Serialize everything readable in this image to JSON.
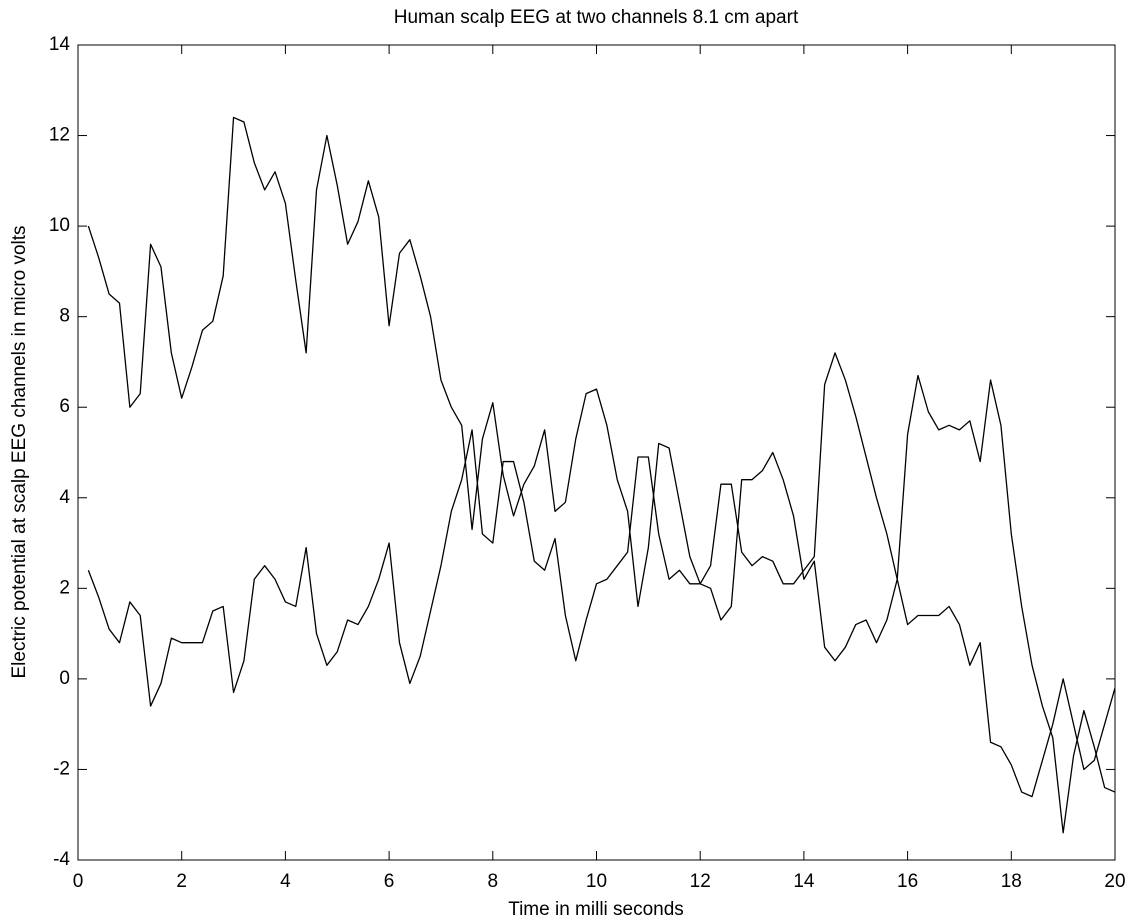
{
  "chart_data": {
    "type": "line",
    "title": "Human scalp EEG at two channels 8.1 cm apart",
    "xlabel": "Time in milli seconds",
    "ylabel": "Electric potential at scalp EEG channels in micro volts",
    "x": [
      0.2,
      0.4,
      0.6,
      0.8,
      1.0,
      1.2,
      1.4,
      1.6,
      1.8,
      2.0,
      2.2,
      2.4,
      2.6,
      2.8,
      3.0,
      3.2,
      3.4,
      3.6,
      3.8,
      4.0,
      4.2,
      4.4,
      4.6,
      4.8,
      5.0,
      5.2,
      5.4,
      5.6,
      5.8,
      6.0,
      6.2,
      6.4,
      6.6,
      6.8,
      7.0,
      7.2,
      7.4,
      7.6,
      7.8,
      8.0,
      8.2,
      8.4,
      8.6,
      8.8,
      9.0,
      9.2,
      9.4,
      9.6,
      9.8,
      10.0,
      10.2,
      10.4,
      10.6,
      10.8,
      11.0,
      11.2,
      11.4,
      11.6,
      11.8,
      12.0,
      12.2,
      12.4,
      12.6,
      12.8,
      13.0,
      13.2,
      13.4,
      13.6,
      13.8,
      14.0,
      14.2,
      14.4,
      14.6,
      14.8,
      15.0,
      15.2,
      15.4,
      15.6,
      15.8,
      16.0,
      16.2,
      16.4,
      16.6,
      16.8,
      17.0,
      17.2,
      17.4,
      17.6,
      17.8,
      18.0,
      18.2,
      18.4,
      18.6,
      18.8,
      19.0,
      19.2,
      19.4,
      19.6,
      19.8,
      20.0
    ],
    "series": [
      {
        "color": "#000000",
        "values": [
          10,
          9.3,
          8.5,
          8.3,
          6.0,
          6.3,
          9.6,
          9.1,
          7.2,
          6.2,
          6.9,
          7.7,
          7.9,
          8.9,
          12.4,
          12.3,
          11.4,
          10.8,
          11.2,
          10.5,
          8.8,
          7.2,
          10.8,
          12.0,
          10.9,
          9.6,
          10.1,
          11.0,
          10.2,
          7.8,
          9.4,
          9.7,
          8.9,
          8.0,
          6.6,
          6.0,
          5.6,
          3.3,
          5.3,
          6.1,
          4.5,
          3.6,
          4.3,
          4.7,
          5.5,
          3.7,
          3.9,
          5.3,
          6.3,
          6.4,
          5.6,
          4.4,
          3.7,
          1.6,
          2.9,
          5.2,
          5.1,
          3.9,
          2.7,
          2.1,
          2.5,
          4.3,
          4.3,
          2.8,
          2.5,
          2.7,
          2.6,
          2.1,
          2.1,
          2.4,
          2.7,
          6.5,
          7.2,
          6.6,
          5.8,
          4.9,
          4.0,
          3.2,
          2.2,
          1.2,
          1.4,
          1.4,
          1.4,
          1.6,
          1.2,
          0.3,
          0.8,
          -1.4,
          -1.5,
          -1.9,
          -2.5,
          -2.6,
          -1.8,
          -1.0,
          0.0,
          -1.0,
          -2.0,
          -1.8,
          -1.0,
          -0.2
        ]
      },
      {
        "color": "#000000",
        "values": [
          2.4,
          1.8,
          1.1,
          0.8,
          1.7,
          1.4,
          -0.6,
          -0.1,
          0.9,
          0.8,
          0.8,
          0.8,
          1.5,
          1.6,
          -0.3,
          0.4,
          2.2,
          2.5,
          2.2,
          1.7,
          1.6,
          2.9,
          1.0,
          0.3,
          0.6,
          1.3,
          1.2,
          1.6,
          2.2,
          3.0,
          0.8,
          -0.1,
          0.5,
          1.5,
          2.5,
          3.7,
          4.4,
          5.5,
          3.2,
          3.0,
          4.8,
          4.8,
          3.9,
          2.6,
          2.4,
          3.1,
          1.4,
          0.4,
          1.3,
          2.1,
          2.2,
          2.5,
          2.8,
          4.9,
          4.9,
          3.2,
          2.2,
          2.4,
          2.1,
          2.1,
          2.0,
          1.3,
          1.6,
          4.4,
          4.4,
          4.6,
          5.0,
          4.4,
          3.6,
          2.2,
          2.6,
          0.7,
          0.4,
          0.7,
          1.2,
          1.3,
          0.8,
          1.3,
          2.2,
          5.4,
          6.7,
          5.9,
          5.5,
          5.6,
          5.5,
          5.7,
          4.8,
          6.6,
          5.6,
          3.2,
          1.6,
          0.3,
          -0.6,
          -1.3,
          -3.4,
          -1.7,
          -0.7,
          -1.5,
          -2.4,
          -2.5
        ]
      }
    ],
    "xlim": [
      0,
      20
    ],
    "xticks": [
      0,
      2,
      4,
      6,
      8,
      10,
      12,
      14,
      16,
      18,
      20
    ],
    "ylim": [
      -4,
      14
    ],
    "yticks": [
      -4,
      -2,
      0,
      2,
      4,
      6,
      8,
      10,
      12,
      14
    ],
    "grid": false
  }
}
